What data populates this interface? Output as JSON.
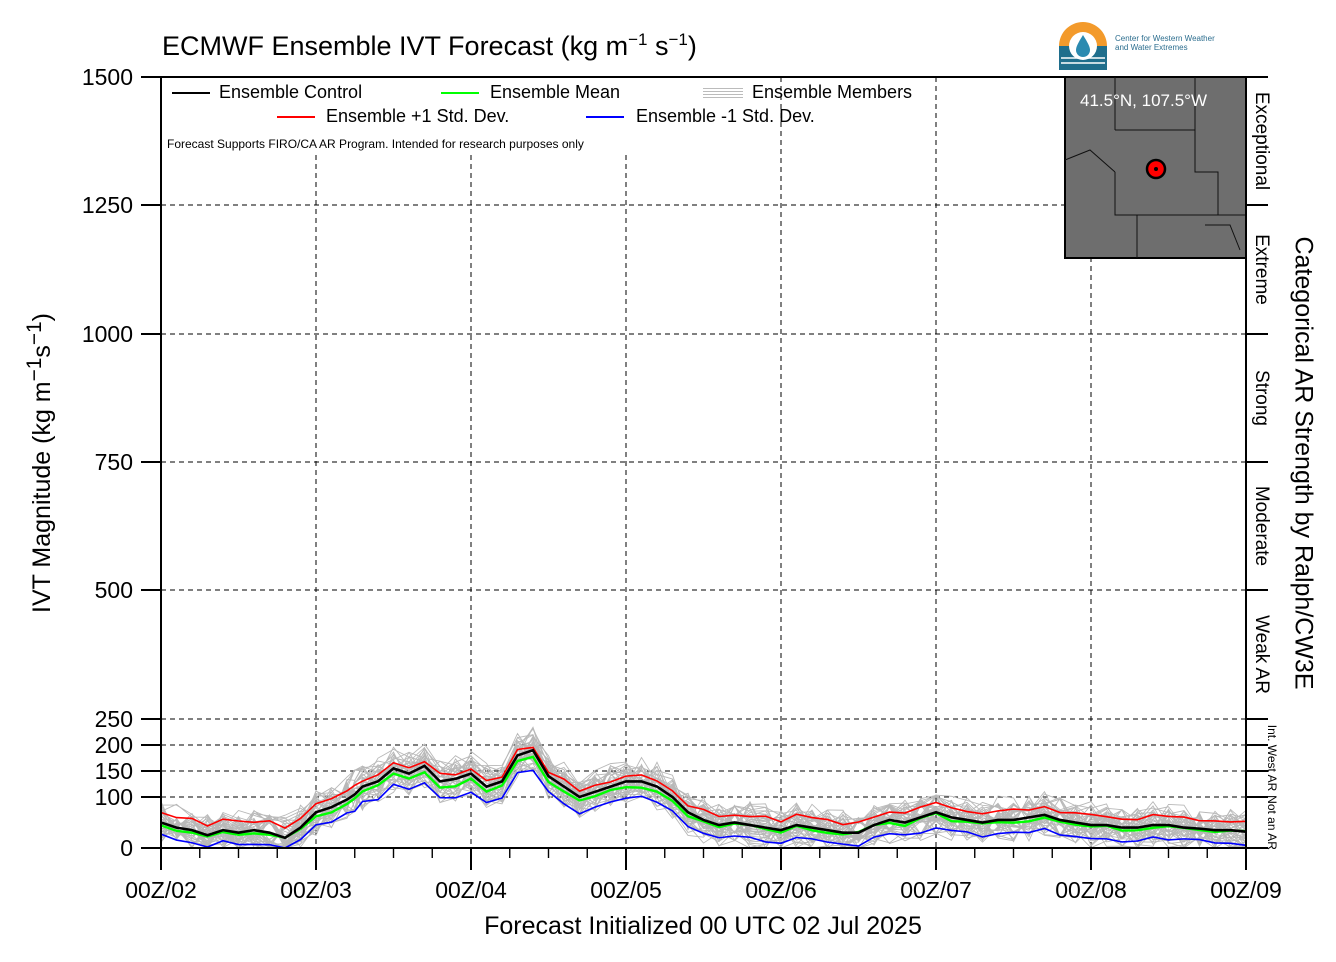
{
  "chart_data": {
    "type": "line",
    "title": "ECMWF Ensemble IVT Forecast (kg m",
    "title_units": {
      "exp1": "−1",
      "mid": " s",
      "exp2": "−1",
      "end": ")"
    },
    "ylabel": "IVT Magnitude (kg m",
    "ylabel_units": {
      "exp1": "−1",
      "mid": "s",
      "exp2": "−1",
      "end": ")"
    },
    "xlabel": "Forecast Initialized 00 UTC 02 Jul 2025",
    "right_label": "Categorical AR Strength by Ralph/CW3E",
    "notice": "Forecast Supports FIRO/CA AR Program. Intended for research purposes only",
    "map_location": "41.5°N, 107.5°W",
    "logo_text": [
      "Center for Western Weather",
      "and Water Extremes"
    ],
    "ylim": [
      0,
      1500
    ],
    "y_ticks": [
      0,
      100,
      150,
      200,
      250,
      500,
      750,
      1000,
      1250,
      1500
    ],
    "y_tick_labels": [
      "0",
      "100",
      "150",
      "200",
      "250",
      "500",
      "750",
      "1000",
      "1250",
      "1500"
    ],
    "x_ticks": [
      "00Z/02",
      "00Z/03",
      "00Z/04",
      "00Z/05",
      "00Z/06",
      "00Z/07",
      "00Z/08",
      "00Z/09"
    ],
    "xlim_hours": [
      0,
      168
    ],
    "grid": true,
    "legend": [
      {
        "label": "Ensemble Control",
        "color": "#000000",
        "type": "line"
      },
      {
        "label": "Ensemble Mean",
        "color": "#00ff00",
        "type": "line"
      },
      {
        "label": "Ensemble Members",
        "color": "#b0b0b0",
        "type": "multi"
      },
      {
        "label": "Ensemble +1 Std. Dev.",
        "color": "#ff0000",
        "type": "line"
      },
      {
        "label": "Ensemble -1 Std. Dev.",
        "color": "#0000ff",
        "type": "line"
      }
    ],
    "categories_right": [
      {
        "label": "Not an AR",
        "from": 0,
        "to": 100
      },
      {
        "label": "Int. West AR",
        "from": 100,
        "to": 250
      },
      {
        "label": "Weak AR",
        "from": 250,
        "to": 500
      },
      {
        "label": "Moderate",
        "from": 500,
        "to": 750
      },
      {
        "label": "Strong",
        "from": 750,
        "to": 1000
      },
      {
        "label": "Extreme",
        "from": 1000,
        "to": 1250
      },
      {
        "label": "Exceptional",
        "from": 1250,
        "to": 1500
      }
    ],
    "x_hours": [
      0,
      6,
      12,
      18,
      24,
      30,
      36,
      42,
      48,
      54,
      60,
      66,
      72,
      78,
      84,
      90,
      96,
      102,
      108,
      114,
      120,
      126,
      132,
      138,
      144,
      150,
      156,
      162,
      168
    ],
    "series": [
      {
        "name": "Ensemble Control",
        "color": "#000000",
        "width": 2.6,
        "x": [
          0,
          6,
          12,
          18,
          24,
          30,
          36,
          42,
          48,
          54,
          60,
          66,
          72,
          75,
          78,
          84,
          90,
          96,
          102,
          108,
          114,
          120,
          126,
          132,
          138,
          144,
          150,
          156,
          162,
          168,
          174,
          180,
          186,
          192,
          198,
          204,
          210,
          216,
          222,
          228,
          234,
          240,
          246,
          252,
          258,
          264,
          270,
          276,
          282,
          288,
          294,
          300,
          306,
          312,
          318,
          324,
          330,
          336,
          342,
          348,
          354,
          360,
          366,
          372,
          378,
          384,
          390,
          396,
          402,
          408,
          414,
          420
        ],
        "y": [
          50,
          40,
          35,
          25,
          35,
          30,
          35,
          30,
          20,
          40,
          70,
          80,
          95,
          105,
          120,
          130,
          155,
          145,
          160,
          130,
          135,
          145,
          120,
          130,
          180,
          190,
          140,
          120,
          100,
          110,
          120,
          130,
          130,
          120,
          100,
          70,
          55,
          45,
          50,
          45,
          40,
          35,
          45,
          40,
          35,
          30,
          30,
          45,
          55,
          50,
          60,
          70,
          60,
          55,
          50,
          55,
          55,
          60,
          65,
          55,
          50,
          45,
          45,
          40,
          40,
          45,
          45,
          40,
          38,
          35,
          35,
          32
        ],
        "scale_x": 0.4
      }
    ]
  }
}
